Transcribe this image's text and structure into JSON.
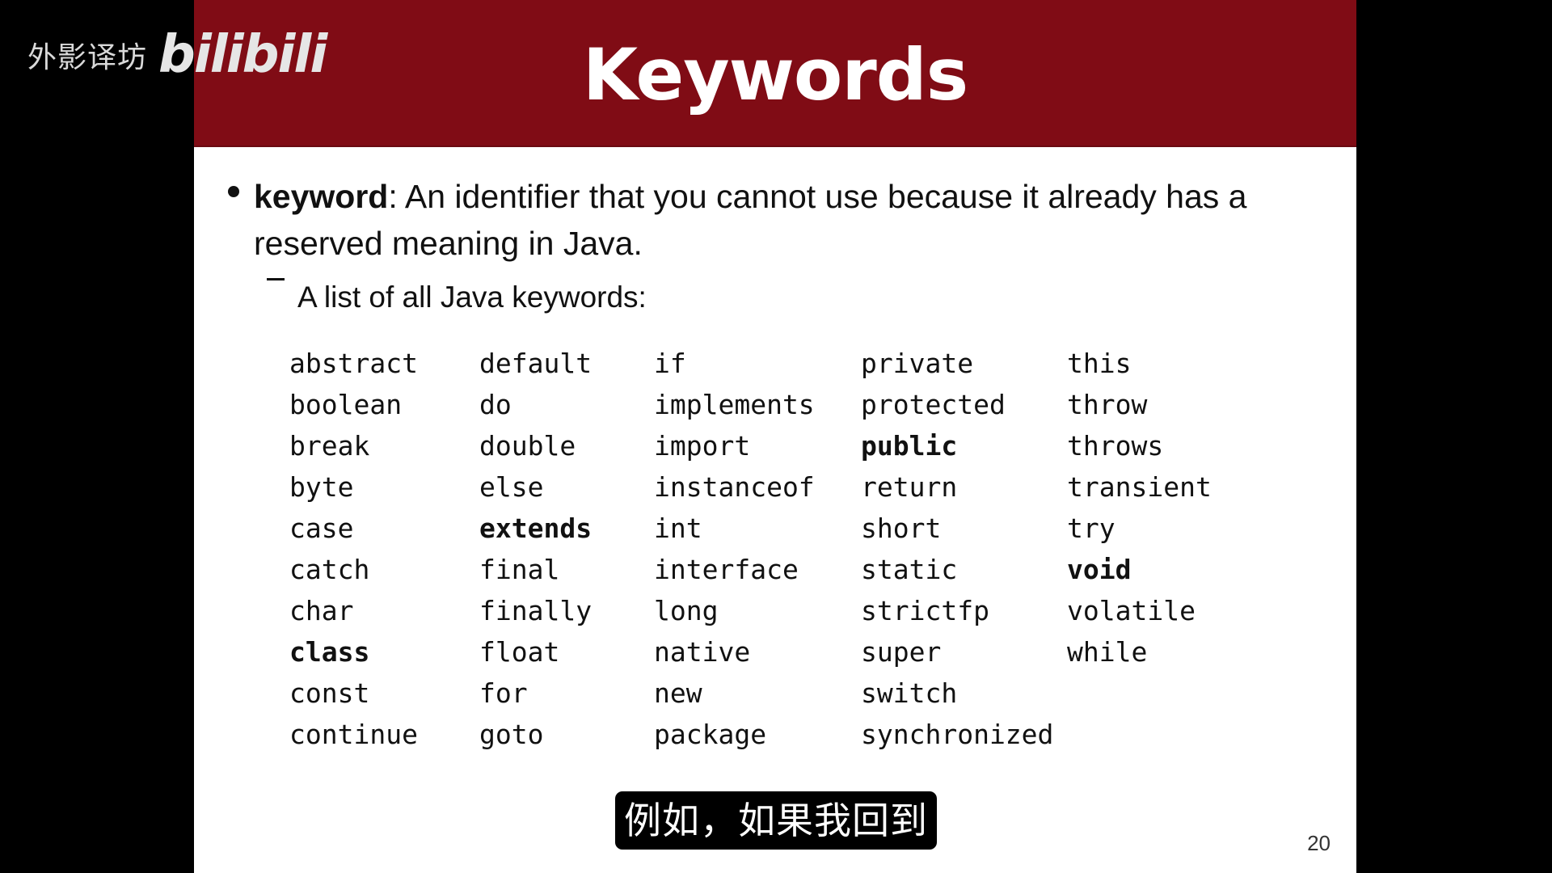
{
  "watermark": {
    "channel": "外影译坊",
    "logo": "bilibili"
  },
  "slide": {
    "title": "Keywords",
    "header_color": "#800c15",
    "bullet": {
      "term": "keyword",
      "definition": ": An identifier that you cannot use because it already has a reserved meaning in Java."
    },
    "sub_bullet": "A list of all Java keywords:",
    "keyword_columns": [
      [
        "abstract",
        "boolean",
        "break",
        "byte",
        "case",
        "catch",
        "char",
        "class",
        "const",
        "continue"
      ],
      [
        "default",
        "do",
        "double",
        "else",
        "extends",
        "final",
        "finally",
        "float",
        "for",
        "goto"
      ],
      [
        "if",
        "implements",
        "import",
        "instanceof",
        "int",
        "interface",
        "long",
        "native",
        "new",
        "package"
      ],
      [
        "private",
        "protected",
        "public",
        "return",
        "short",
        "static",
        "strictfp",
        "super",
        "switch",
        "synchronized"
      ],
      [
        "this",
        "throw",
        "throws",
        "transient",
        "try",
        "void",
        "volatile",
        "while"
      ]
    ],
    "bold_keywords": [
      "class",
      "extends",
      "public",
      "void"
    ],
    "page_number": "20"
  },
  "subtitle": "例如，如果我回到"
}
